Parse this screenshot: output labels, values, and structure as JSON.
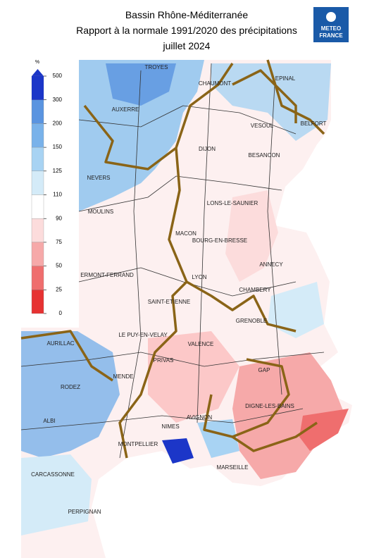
{
  "header": {
    "title_lines": [
      "Bassin Rhône-Méditerranée",
      "Rapport à la normale 1991/2020 des précipitations",
      "juillet 2024"
    ],
    "logo": [
      "METEO",
      "FRANCE"
    ]
  },
  "legend": {
    "unit": "%",
    "ticks": [
      500,
      300,
      200,
      150,
      125,
      110,
      90,
      75,
      50,
      25,
      0
    ],
    "colors": [
      "#1c36c8",
      "#3c74d6",
      "#5a94e0",
      "#79b2ea",
      "#a8d3f3",
      "#d4ebf8",
      "#ffffff",
      "#fcdcdc",
      "#f6a9a9",
      "#ef6e6e",
      "#e63232"
    ]
  },
  "cities": [
    "TROYES",
    "CHAUMONT",
    "EPINAL",
    "AUXERRE",
    "VESOUL",
    "BELFORT",
    "DIJON",
    "BESANCON",
    "NEVERS",
    "LONS-LE-SAUNIER",
    "MOULINS",
    "MACON",
    "BOURG-EN-BRESSE",
    "ANNECY",
    "ERMONT-FERRAND",
    "LYON",
    "CHAMBERY",
    "SAINT-ETIENNE",
    "GRENOBLE",
    "LE PUY-EN-VELAY",
    "AURILLAC",
    "VALENCE",
    "PRIVAS",
    "GAP",
    "MENDE",
    "RODEZ",
    "DIGNE-LES-BAINS",
    "ALBI",
    "AVIGNON",
    "NIMES",
    "MONTPELLIER",
    "MARSEILLE",
    "CARCASSONNE",
    "PERPIGNAN"
  ]
}
